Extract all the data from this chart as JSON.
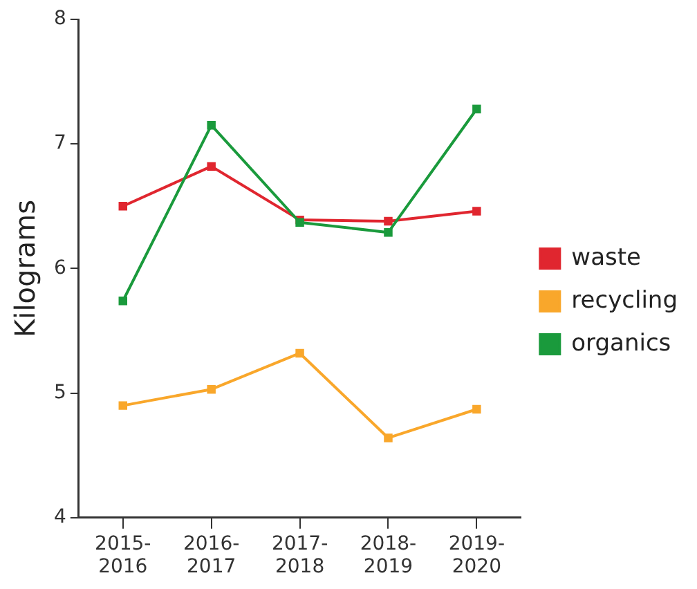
{
  "chart_data": {
    "type": "line",
    "ylabel": "Kilograms",
    "categories": [
      "2015-2016",
      "2016-2017",
      "2017-2018",
      "2018-2019",
      "2019-2020"
    ],
    "series": [
      {
        "name": "waste",
        "color": "#e0262f",
        "values": [
          6.5,
          6.82,
          6.39,
          6.38,
          6.46
        ]
      },
      {
        "name": "recycling",
        "color": "#f9a72b",
        "values": [
          4.9,
          5.03,
          5.32,
          4.64,
          4.87
        ]
      },
      {
        "name": "organics",
        "color": "#1a9a3c",
        "values": [
          5.74,
          7.15,
          6.37,
          6.29,
          7.28
        ]
      }
    ],
    "ylim": [
      4,
      8
    ],
    "yticks": [
      4,
      5,
      6,
      7,
      8
    ],
    "grid": false,
    "legend": "right",
    "marker": "square",
    "line_style": "solid"
  }
}
